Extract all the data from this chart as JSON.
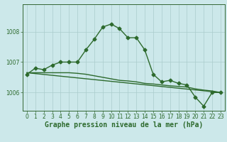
{
  "title": "Graphe pression niveau de la mer (hPa)",
  "background_color": "#cce8ea",
  "line_color": "#2d6a2d",
  "grid_color": "#aacccc",
  "xlim": [
    -0.5,
    23.5
  ],
  "ylim": [
    1005.4,
    1008.9
  ],
  "yticks": [
    1006,
    1007,
    1008
  ],
  "xticks": [
    0,
    1,
    2,
    3,
    4,
    5,
    6,
    7,
    8,
    9,
    10,
    11,
    12,
    13,
    14,
    15,
    16,
    17,
    18,
    19,
    20,
    21,
    22,
    23
  ],
  "series1_x": [
    0,
    1,
    2,
    3,
    4,
    5,
    6,
    7,
    8,
    9,
    10,
    11,
    12,
    13,
    14,
    15,
    16,
    17,
    18,
    19,
    20,
    21,
    22,
    23
  ],
  "series1_y": [
    1006.6,
    1006.8,
    1006.75,
    1006.9,
    1007.0,
    1007.0,
    1007.0,
    1007.4,
    1007.75,
    1008.15,
    1008.25,
    1008.1,
    1007.8,
    1007.8,
    1007.4,
    1006.6,
    1006.35,
    1006.4,
    1006.3,
    1006.25,
    1005.85,
    1005.55,
    1006.0,
    1006.0
  ],
  "series2_x": [
    0,
    23
  ],
  "series2_y": [
    1006.65,
    1006.0
  ],
  "series3_x": [
    0,
    1,
    2,
    3,
    4,
    5,
    6,
    7,
    8,
    9,
    10,
    11,
    12,
    13,
    14,
    15,
    16,
    17,
    18,
    19,
    20,
    21,
    22,
    23
  ],
  "series3_y": [
    1006.65,
    1006.65,
    1006.65,
    1006.65,
    1006.65,
    1006.65,
    1006.63,
    1006.6,
    1006.55,
    1006.5,
    1006.45,
    1006.4,
    1006.38,
    1006.35,
    1006.3,
    1006.28,
    1006.25,
    1006.22,
    1006.2,
    1006.18,
    1006.12,
    1006.08,
    1006.05,
    1006.0
  ],
  "marker_size": 2.5,
  "linewidth": 1.0,
  "title_fontsize": 7,
  "tick_fontsize": 5.5
}
